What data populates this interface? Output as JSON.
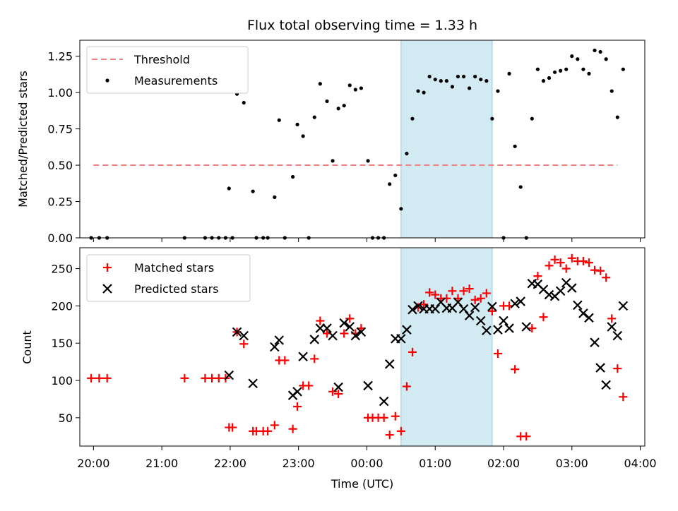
{
  "chart_data": [
    {
      "type": "scatter",
      "title": "Flux total observing time = 1.33 h",
      "xlabel": "",
      "ylabel": "Matched/Predicted stars",
      "ylim": [
        0,
        1.36
      ],
      "yticks": [
        "0.00",
        "0.25",
        "0.50",
        "0.75",
        "1.00",
        "1.25"
      ],
      "shaded_interval": [
        "00:30",
        "01:50"
      ],
      "shade_color": "#add8e6",
      "threshold": {
        "name": "Threshold",
        "value": 0.5,
        "x_start": "20:00",
        "x_end": "03:40",
        "color": "#f08080"
      },
      "series": [
        {
          "name": "Measurements",
          "color": "#000000",
          "x": [
            "19:58",
            "20:05",
            "20:12",
            "21:20",
            "21:38",
            "21:44",
            "21:50",
            "21:56",
            "21:59",
            "22:02",
            "22:06",
            "22:12",
            "22:20",
            "22:23",
            "22:29",
            "22:33",
            "22:39",
            "22:43",
            "22:48",
            "22:55",
            "22:59",
            "23:04",
            "23:09",
            "23:14",
            "23:19",
            "23:25",
            "23:30",
            "23:35",
            "23:40",
            "23:45",
            "23:50",
            "23:55",
            "00:01",
            "00:05",
            "00:10",
            "00:15",
            "00:20",
            "00:25",
            "00:30",
            "00:35",
            "00:40",
            "00:45",
            "00:50",
            "00:55",
            "01:00",
            "01:05",
            "01:10",
            "01:15",
            "01:20",
            "01:25",
            "01:30",
            "01:35",
            "01:40",
            "01:45",
            "01:50",
            "01:55",
            "02:00",
            "02:05",
            "02:10",
            "02:15",
            "02:20",
            "02:25",
            "02:30",
            "02:35",
            "02:40",
            "02:45",
            "02:50",
            "02:55",
            "03:00",
            "03:05",
            "03:10",
            "03:15",
            "03:20",
            "03:25",
            "03:30",
            "03:35",
            "03:40",
            "03:45"
          ],
          "y": [
            0.0,
            0.0,
            0.0,
            0.0,
            0.0,
            0.0,
            0.0,
            0.0,
            0.34,
            0.0,
            0.99,
            0.93,
            0.32,
            0.0,
            0.0,
            0.0,
            0.28,
            0.81,
            0.0,
            0.42,
            0.78,
            0.7,
            0.0,
            0.83,
            1.06,
            0.94,
            0.53,
            0.89,
            0.91,
            1.05,
            1.02,
            1.03,
            0.53,
            0.0,
            0.0,
            0.0,
            0.37,
            0.43,
            0.2,
            0.58,
            0.82,
            1.01,
            1.0,
            1.11,
            1.09,
            1.08,
            1.08,
            1.04,
            1.11,
            1.11,
            1.03,
            1.11,
            1.09,
            1.08,
            0.82,
            1.01,
            0.0,
            1.13,
            0.63,
            0.35,
            0.0,
            0.82,
            1.16,
            1.08,
            1.1,
            1.14,
            1.15,
            1.16,
            1.25,
            1.23,
            1.16,
            1.13,
            1.29,
            1.28,
            1.23,
            1.01,
            0.83,
            1.16
          ]
        }
      ],
      "legend": [
        "Threshold",
        "Measurements"
      ],
      "legend_position": "top-left"
    },
    {
      "type": "scatter",
      "title": "",
      "xlabel": "Time (UTC)",
      "ylabel": "Count",
      "ylim": [
        12,
        278
      ],
      "yticks": [
        "50",
        "100",
        "150",
        "200",
        "250"
      ],
      "xticks": [
        "20:00",
        "21:00",
        "22:00",
        "23:00",
        "00:00",
        "01:00",
        "02:00",
        "03:00",
        "04:00"
      ],
      "shaded_interval": [
        "00:30",
        "01:50"
      ],
      "series": [
        {
          "name": "Matched stars",
          "marker": "plus",
          "color": "#ff0000",
          "x": [
            "19:58",
            "20:05",
            "20:12",
            "21:20",
            "21:38",
            "21:44",
            "21:50",
            "21:56",
            "21:59",
            "22:02",
            "22:06",
            "22:12",
            "22:20",
            "22:23",
            "22:29",
            "22:33",
            "22:39",
            "22:43",
            "22:48",
            "22:55",
            "22:59",
            "23:04",
            "23:09",
            "23:14",
            "23:19",
            "23:25",
            "23:30",
            "23:35",
            "23:40",
            "23:45",
            "23:50",
            "23:55",
            "00:01",
            "00:05",
            "00:10",
            "00:15",
            "00:20",
            "00:25",
            "00:30",
            "00:35",
            "00:40",
            "00:45",
            "00:50",
            "00:55",
            "01:00",
            "01:05",
            "01:10",
            "01:15",
            "01:20",
            "01:25",
            "01:30",
            "01:35",
            "01:40",
            "01:45",
            "01:50",
            "01:55",
            "02:00",
            "02:05",
            "02:10",
            "02:15",
            "02:20",
            "02:25",
            "02:30",
            "02:35",
            "02:40",
            "02:45",
            "02:50",
            "02:55",
            "03:00",
            "03:05",
            "03:10",
            "03:15",
            "03:20",
            "03:25",
            "03:30",
            "03:35",
            "03:40",
            "03:45"
          ],
          "y": [
            103,
            103,
            103,
            103,
            103,
            103,
            103,
            103,
            37,
            37,
            165,
            149,
            32,
            32,
            32,
            32,
            40,
            127,
            127,
            35,
            65,
            93,
            93,
            129,
            180,
            163,
            85,
            82,
            163,
            183,
            163,
            170,
            50,
            50,
            50,
            50,
            27,
            52,
            32,
            92,
            138,
            198,
            202,
            218,
            215,
            210,
            210,
            220,
            210,
            220,
            223,
            208,
            210,
            217,
            193,
            136,
            200,
            200,
            115,
            25,
            25,
            170,
            240,
            185,
            254,
            262,
            258,
            250,
            264,
            260,
            260,
            258,
            248,
            247,
            238,
            183,
            116,
            78
          ]
        },
        {
          "name": "Predicted stars",
          "marker": "x",
          "color": "#000000",
          "x": [
            "21:59",
            "22:06",
            "22:12",
            "22:20",
            "22:39",
            "22:43",
            "22:55",
            "22:59",
            "23:04",
            "23:14",
            "23:19",
            "23:25",
            "23:30",
            "23:35",
            "23:40",
            "23:45",
            "23:50",
            "23:55",
            "00:01",
            "00:15",
            "00:20",
            "00:25",
            "00:30",
            "00:35",
            "00:40",
            "00:45",
            "00:50",
            "00:55",
            "01:00",
            "01:05",
            "01:10",
            "01:15",
            "01:20",
            "01:25",
            "01:30",
            "01:35",
            "01:40",
            "01:45",
            "01:50",
            "01:55",
            "02:00",
            "02:05",
            "02:10",
            "02:15",
            "02:20",
            "02:25",
            "02:30",
            "02:35",
            "02:40",
            "02:45",
            "02:50",
            "02:55",
            "03:00",
            "03:05",
            "03:10",
            "03:15",
            "03:20",
            "03:25",
            "03:30",
            "03:35",
            "03:40",
            "03:45"
          ],
          "y": [
            107,
            165,
            160,
            96,
            145,
            154,
            80,
            85,
            132,
            155,
            170,
            170,
            160,
            91,
            177,
            172,
            160,
            165,
            93,
            72,
            122,
            156,
            156,
            168,
            195,
            200,
            196,
            196,
            196,
            205,
            197,
            197,
            205,
            196,
            187,
            198,
            180,
            167,
            199,
            168,
            180,
            170,
            203,
            206,
            172,
            230,
            229,
            222,
            215,
            213,
            220,
            231,
            224,
            201,
            190,
            184,
            151,
            117,
            94,
            172,
            160,
            200
          ]
        }
      ],
      "legend": [
        "Matched stars",
        "Predicted stars"
      ],
      "legend_position": "top-left"
    }
  ]
}
